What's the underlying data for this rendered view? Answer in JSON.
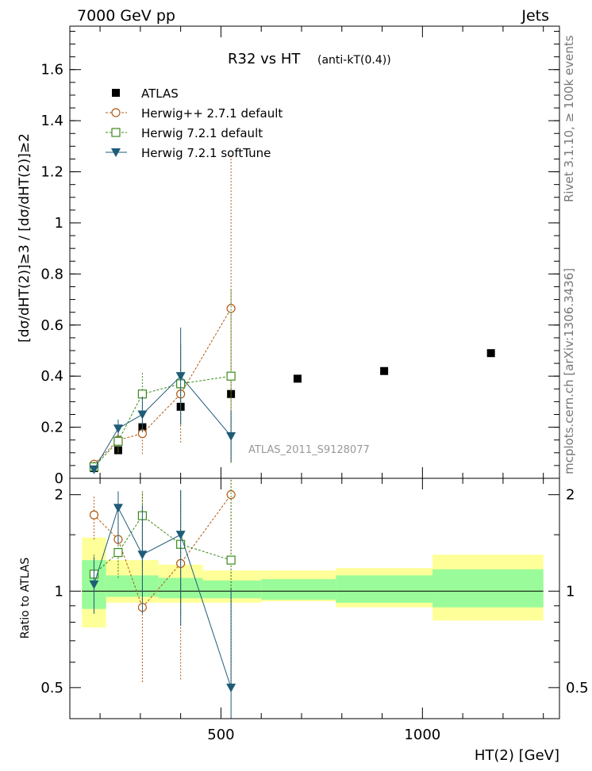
{
  "header": {
    "energy": "7000 GeV pp",
    "process": "Jets",
    "rivet": "Rivet 3.1.10, ≥ 100k events",
    "source": "mcplots.cern.ch [arXiv:1306.3436]",
    "analysis": "ATLAS_2011_S9128077"
  },
  "chart_data": [
    {
      "type": "scatter",
      "panel": "main",
      "title_main": "R32 vs HT",
      "title_sub": "(anti-kT(0.4))",
      "ylabel": "[dσ/dHT(2)]≥3 / [dσ/dHT(2)]≥2",
      "xlim": [
        125,
        1340
      ],
      "ylim": [
        0,
        1.77
      ],
      "yticks": [
        0,
        0.2,
        0.4,
        0.6,
        0.8,
        1,
        1.2,
        1.4,
        1.6
      ],
      "ytick_labels": [
        "0",
        "0.2",
        "0.4",
        "0.6",
        "0.8",
        "1",
        "1.2",
        "1.4",
        "1.6"
      ],
      "legend": [
        "ATLAS",
        "Herwig++ 2.7.1 default",
        "Herwig 7.2.1 default",
        "Herwig 7.2.1 softTune"
      ],
      "series": [
        {
          "name": "ATLAS",
          "marker": "square-filled",
          "color": "#000000",
          "x": [
            185,
            245,
            305,
            400,
            525,
            690,
            905,
            1170
          ],
          "y": [
            0.04,
            0.11,
            0.2,
            0.28,
            0.33,
            0.39,
            0.42,
            0.49
          ]
        },
        {
          "name": "Herwig++ 2.7.1 default",
          "marker": "circle-open",
          "color": "#b05a14",
          "dashed": true,
          "x": [
            185,
            245,
            305,
            400,
            525
          ],
          "y": [
            0.055,
            0.15,
            0.175,
            0.33,
            0.665
          ],
          "err": [
            0.025,
            0.05,
            0.08,
            0.19,
            0.6
          ]
        },
        {
          "name": "Herwig 7.2.1 default",
          "marker": "square-open",
          "color": "#3a8a1a",
          "dashed": true,
          "x": [
            185,
            245,
            305,
            400,
            525
          ],
          "y": [
            0.045,
            0.145,
            0.33,
            0.37,
            0.4
          ],
          "err": [
            0.02,
            0.04,
            0.085,
            0.16,
            0.34
          ]
        },
        {
          "name": "Herwig 7.2.1 softTune",
          "marker": "triangle-down-filled",
          "color": "#1e5c78",
          "dashed": false,
          "x": [
            185,
            245,
            305,
            400,
            525
          ],
          "y": [
            0.035,
            0.195,
            0.25,
            0.4,
            0.165
          ],
          "err": [
            0.015,
            0.035,
            0.07,
            0.19,
            0.1
          ]
        }
      ]
    },
    {
      "type": "scatter",
      "panel": "ratio",
      "ylabel": "Ratio to ATLAS",
      "xlabel": "HT(2) [GeV]",
      "xlim": [
        125,
        1340
      ],
      "ylim": [
        0.4,
        2.25
      ],
      "yticks": [
        0.5,
        1,
        2
      ],
      "ytick_labels": [
        "0.5",
        "1",
        "2"
      ],
      "xticks": [
        500,
        1000
      ],
      "xtick_labels": [
        "500",
        "1000"
      ],
      "bands": {
        "edges": [
          155,
          215,
          345,
          455,
          600,
          785,
          1025,
          1300
        ],
        "inner": [
          [
            0.88,
            1.25
          ],
          [
            0.96,
            1.12
          ],
          [
            0.95,
            1.1
          ],
          [
            0.95,
            1.08
          ],
          [
            0.94,
            1.09
          ],
          [
            0.92,
            1.12
          ],
          [
            0.89,
            1.17
          ],
          [
            0.85,
            1.25
          ]
        ],
        "outer": [
          [
            0.77,
            1.47
          ],
          [
            0.92,
            1.25
          ],
          [
            0.92,
            1.21
          ],
          [
            0.92,
            1.16
          ],
          [
            0.93,
            1.16
          ],
          [
            0.89,
            1.18
          ],
          [
            0.81,
            1.3
          ],
          [
            0.64,
            1.45
          ]
        ],
        "inner_color": "#9afb9a",
        "outer_color": "#ffff99"
      },
      "series": [
        {
          "name": "Herwig++ 2.7.1 default",
          "x": [
            185,
            245,
            305,
            400,
            525
          ],
          "y": [
            1.73,
            1.45,
            0.89,
            1.22,
            2.0
          ],
          "lo": [
            1.45,
            1.15,
            0.52,
            0.53,
            0.5
          ],
          "hi": [
            1.98,
            1.75,
            2.05,
            2.05,
            2.25
          ]
        },
        {
          "name": "Herwig 7.2.1 default",
          "x": [
            185,
            245,
            305,
            400,
            525
          ],
          "y": [
            1.13,
            1.32,
            1.72,
            1.4,
            1.25
          ],
          "lo": [
            1.0,
            1.1,
            1.2,
            0.85,
            0.6
          ],
          "hi": [
            1.3,
            1.55,
            2.05,
            2.05,
            2.25
          ]
        },
        {
          "name": "Herwig 7.2.1 softTune",
          "x": [
            185,
            245,
            305,
            400,
            525
          ],
          "y": [
            1.05,
            1.82,
            1.3,
            1.5,
            0.5
          ],
          "lo": [
            0.85,
            1.4,
            0.85,
            0.78,
            0.4
          ],
          "hi": [
            1.28,
            2.05,
            1.85,
            2.07,
            1.02
          ]
        }
      ]
    }
  ]
}
